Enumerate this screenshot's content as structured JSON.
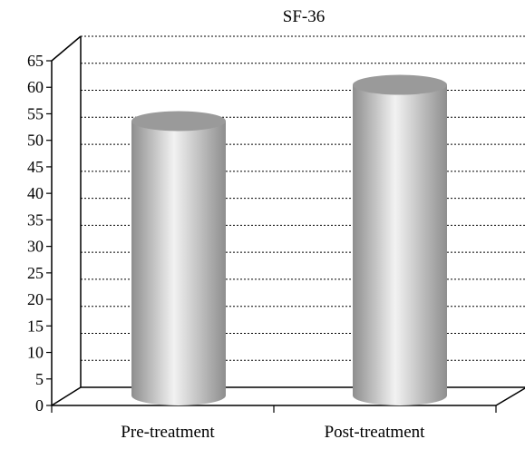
{
  "chart_data": {
    "type": "bar",
    "style": "3d-cylinder",
    "title": "SF-36",
    "xlabel": "",
    "ylabel": "",
    "categories": [
      "Pre-treatment",
      "Post-treatment"
    ],
    "values": [
      53,
      60
    ],
    "ylim": [
      0,
      65
    ],
    "ytick_step": 5,
    "yticks": [
      "0",
      "5",
      "10",
      "15",
      "20",
      "25",
      "30",
      "35",
      "40",
      "45",
      "50",
      "55",
      "60",
      "65"
    ],
    "grid": true,
    "grid_style": "dotted",
    "legend": "none",
    "colors": {
      "bar_dark": "#8e8e8e",
      "bar_light": "#f2f2f2",
      "bar_top": "#9a9a9a",
      "axis": "#000000",
      "grid": "#000000"
    }
  }
}
